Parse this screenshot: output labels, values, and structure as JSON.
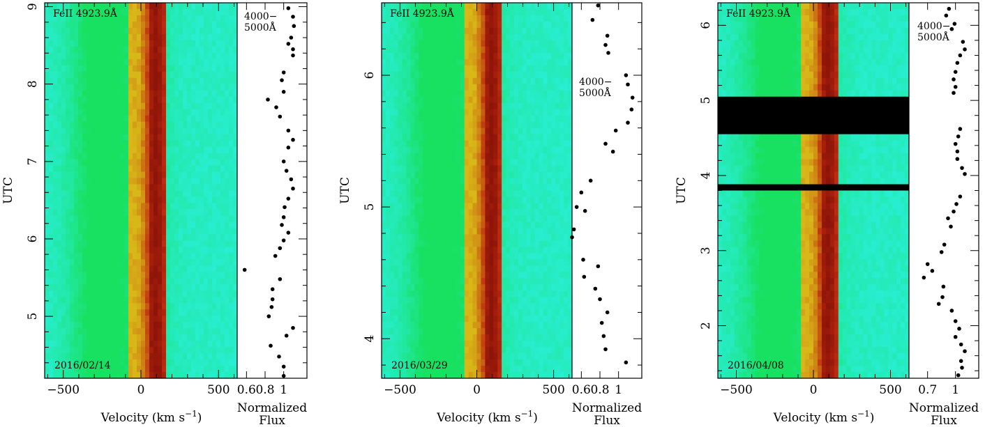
{
  "figure": {
    "xlabel": "Velocity (km s",
    "xlabel_sup": "−1",
    "xlabel_close": ")",
    "ylabel": "UTC",
    "flux_label_line1": "Normalized",
    "flux_label_line2": "Flux",
    "line_label": "FeII 4923.9Å",
    "band_label_line1": "4000−",
    "band_label_line2": "5000Å",
    "colors": {
      "continuum_low": "#28eed2",
      "continuum_mid": "#18e060",
      "wing": "#d8b818",
      "core": "#c02c10",
      "core_deep": "#8c1408",
      "gap": "#ffffff",
      "points": "#000000"
    }
  },
  "chart_data": [
    {
      "type": "heatmap",
      "date": "2016/02/14",
      "xlabel": "Velocity (km s−1)",
      "ylabel": "UTC",
      "xlim": [
        -620,
        620
      ],
      "xticks": [
        -500,
        0,
        500
      ],
      "xtick_labels": [
        "−500",
        "0",
        "500"
      ],
      "ylim": [
        4.2,
        9.05
      ],
      "yticks": [
        5,
        6,
        7,
        8,
        9
      ],
      "ytick_labels": [
        "5",
        "6",
        "7",
        "8",
        "9"
      ],
      "line": "FeII 4923.9Å",
      "gaps": [],
      "flux": {
        "xlim": [
          0.5,
          1.25
        ],
        "xticks": [
          0.6,
          0.8,
          1
        ],
        "xtick_labels": [
          "0.6",
          "0.8",
          "1"
        ],
        "xlabel": "Normalized Flux",
        "band": "4000−5000Å",
        "points": [
          [
            1.05,
            8.98
          ],
          [
            1.1,
            8.87
          ],
          [
            1.11,
            8.75
          ],
          [
            1.08,
            8.6
          ],
          [
            1.05,
            8.52
          ],
          [
            1.1,
            8.45
          ],
          [
            1.1,
            8.37
          ],
          [
            1.0,
            8.15
          ],
          [
            0.98,
            8.05
          ],
          [
            1.0,
            7.9
          ],
          [
            0.83,
            7.8
          ],
          [
            0.92,
            7.7
          ],
          [
            0.96,
            7.58
          ],
          [
            1.05,
            7.4
          ],
          [
            1.1,
            7.28
          ],
          [
            1.05,
            7.18
          ],
          [
            1.0,
            7.0
          ],
          [
            1.03,
            6.88
          ],
          [
            1.08,
            6.77
          ],
          [
            1.1,
            6.65
          ],
          [
            1.05,
            6.52
          ],
          [
            1.01,
            6.41
          ],
          [
            1.0,
            6.28
          ],
          [
            0.98,
            6.18
          ],
          [
            1.05,
            6.08
          ],
          [
            1.0,
            5.98
          ],
          [
            0.96,
            5.88
          ],
          [
            0.91,
            5.78
          ],
          [
            0.58,
            5.6
          ],
          [
            0.96,
            5.48
          ],
          [
            0.88,
            5.35
          ],
          [
            0.88,
            5.22
          ],
          [
            0.87,
            5.12
          ],
          [
            0.84,
            5.0
          ],
          [
            1.1,
            4.85
          ],
          [
            1.03,
            4.75
          ],
          [
            0.86,
            4.62
          ],
          [
            0.95,
            4.48
          ],
          [
            1.0,
            4.35
          ],
          [
            1.0,
            4.23
          ]
        ]
      }
    },
    {
      "type": "heatmap",
      "date": "2016/03/29",
      "xlabel": "Velocity (km s−1)",
      "ylabel": "UTC",
      "xlim": [
        -620,
        620
      ],
      "xticks": [
        -500,
        0,
        500
      ],
      "xtick_labels": [
        "−500",
        "0",
        "500"
      ],
      "ylim": [
        3.7,
        6.55
      ],
      "yticks": [
        4,
        5,
        6
      ],
      "ytick_labels": [
        "4",
        "5",
        "6"
      ],
      "line": "FeII 4923.9Å",
      "gaps": [],
      "flux": {
        "xlim": [
          0.5,
          1.25
        ],
        "xticks": [
          0.6,
          0.8,
          1
        ],
        "xtick_labels": [
          "0.6",
          "0.8",
          "1"
        ],
        "xlabel": "Normalized Flux",
        "band": "4000−5000Å",
        "points": [
          [
            0.78,
            6.53
          ],
          [
            0.72,
            6.42
          ],
          [
            0.88,
            6.3
          ],
          [
            0.86,
            6.23
          ],
          [
            0.89,
            6.17
          ],
          [
            1.08,
            6.0
          ],
          [
            1.1,
            5.93
          ],
          [
            1.15,
            5.83
          ],
          [
            1.14,
            5.74
          ],
          [
            1.1,
            5.64
          ],
          [
            0.97,
            5.58
          ],
          [
            0.86,
            5.48
          ],
          [
            0.94,
            5.42
          ],
          [
            0.7,
            5.2
          ],
          [
            0.6,
            5.11
          ],
          [
            0.55,
            5.0
          ],
          [
            0.64,
            4.97
          ],
          [
            0.52,
            4.83
          ],
          [
            0.5,
            4.77
          ],
          [
            0.62,
            4.6
          ],
          [
            0.78,
            4.55
          ],
          [
            0.63,
            4.47
          ],
          [
            0.75,
            4.38
          ],
          [
            0.8,
            4.3
          ],
          [
            0.88,
            4.2
          ],
          [
            0.82,
            4.12
          ],
          [
            0.84,
            4.02
          ],
          [
            0.86,
            3.92
          ],
          [
            1.08,
            3.82
          ]
        ]
      }
    },
    {
      "type": "heatmap",
      "date": "2016/04/08",
      "xlabel": "Velocity (km s−1)",
      "ylabel": "UTC",
      "xlim": [
        -620,
        620
      ],
      "xticks": [
        -500,
        0,
        500
      ],
      "xtick_labels": [
        "−500",
        "0",
        "500"
      ],
      "ylim": [
        1.3,
        6.3
      ],
      "yticks": [
        2,
        3,
        4,
        5,
        6
      ],
      "ytick_labels": [
        "2",
        "3",
        "4",
        "5",
        "6"
      ],
      "line": "FeII 4923.9Å",
      "gaps": [
        [
          4.58,
          5.05
        ],
        [
          3.82,
          3.92
        ]
      ],
      "flux": {
        "xlim": [
          0.5,
          1.25
        ],
        "xticks": [
          0.7,
          1
        ],
        "xtick_labels": [
          "0.7",
          "1"
        ],
        "xlabel": "Normalized Flux",
        "band": "4000−5000Å",
        "points": [
          [
            0.93,
            6.22
          ],
          [
            0.9,
            6.13
          ],
          [
            0.99,
            6.02
          ],
          [
            0.96,
            5.95
          ],
          [
            1.08,
            5.78
          ],
          [
            1.1,
            5.68
          ],
          [
            1.05,
            5.6
          ],
          [
            1.02,
            5.5
          ],
          [
            1.0,
            5.38
          ],
          [
            0.98,
            5.28
          ],
          [
            1.0,
            5.18
          ],
          [
            0.98,
            5.1
          ],
          [
            1.05,
            4.62
          ],
          [
            1.03,
            4.52
          ],
          [
            1.0,
            4.42
          ],
          [
            1.02,
            4.32
          ],
          [
            1.02,
            4.22
          ],
          [
            1.07,
            4.1
          ],
          [
            1.1,
            4.02
          ],
          [
            1.05,
            3.72
          ],
          [
            1.01,
            3.62
          ],
          [
            0.98,
            3.52
          ],
          [
            0.92,
            3.43
          ],
          [
            0.95,
            3.32
          ],
          [
            0.88,
            3.08
          ],
          [
            0.85,
            2.98
          ],
          [
            0.7,
            2.82
          ],
          [
            0.75,
            2.73
          ],
          [
            0.66,
            2.64
          ],
          [
            0.87,
            2.52
          ],
          [
            0.86,
            2.38
          ],
          [
            0.82,
            2.29
          ],
          [
            0.96,
            2.2
          ],
          [
            1.0,
            2.06
          ],
          [
            1.04,
            1.96
          ],
          [
            1.0,
            1.85
          ],
          [
            1.06,
            1.75
          ],
          [
            1.1,
            1.66
          ],
          [
            1.06,
            1.53
          ],
          [
            1.07,
            1.44
          ],
          [
            1.03,
            1.34
          ]
        ]
      }
    }
  ]
}
